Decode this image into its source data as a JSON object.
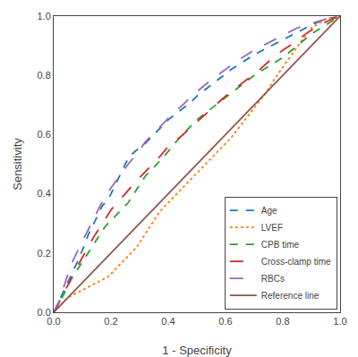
{
  "chart_data": {
    "type": "line",
    "x_label": "1 - Specificity",
    "y_label": "Sensitivity",
    "xlim": [
      0.0,
      1.0
    ],
    "ylim": [
      0.0,
      1.0
    ],
    "xticks": [
      {
        "value": 0.0,
        "label": "0.0"
      },
      0.2,
      0.4,
      0.6,
      0.8,
      {
        "value": 1.0,
        "label": "1.0"
      }
    ],
    "yticks": [
      {
        "value": 0.0,
        "label": "0.0"
      },
      0.2,
      0.4,
      0.6,
      0.8,
      {
        "value": 1.0,
        "label": "1.0"
      }
    ],
    "grid": false,
    "legend": "lower right",
    "series": [
      {
        "name": "Age",
        "line_style": "dash",
        "x": [
          0.0,
          0.01,
          0.02,
          0.03,
          0.04,
          0.05,
          0.06,
          0.07,
          0.08,
          0.09,
          0.1,
          0.11,
          0.12,
          0.13,
          0.14,
          0.15,
          0.16,
          0.17,
          0.18,
          0.19,
          0.2,
          0.21,
          0.22,
          0.23,
          0.24,
          0.25,
          0.26,
          0.28,
          0.3,
          0.32,
          0.34,
          0.36,
          0.38,
          0.4,
          0.42,
          0.44,
          0.46,
          0.48,
          0.5,
          0.54,
          0.58,
          0.62,
          0.66,
          0.7,
          0.74,
          0.78,
          0.82,
          0.86,
          0.9,
          0.95,
          1.0
        ],
        "values": [
          0.0,
          0.02,
          0.04,
          0.06,
          0.08,
          0.1,
          0.12,
          0.14,
          0.165,
          0.185,
          0.21,
          0.23,
          0.26,
          0.28,
          0.3,
          0.32,
          0.34,
          0.36,
          0.37,
          0.38,
          0.4,
          0.42,
          0.44,
          0.46,
          0.48,
          0.5,
          0.52,
          0.54,
          0.555,
          0.57,
          0.59,
          0.61,
          0.63,
          0.65,
          0.665,
          0.68,
          0.695,
          0.71,
          0.73,
          0.76,
          0.79,
          0.82,
          0.845,
          0.87,
          0.89,
          0.91,
          0.93,
          0.95,
          0.97,
          0.99,
          1.0
        ]
      },
      {
        "name": "LVEF",
        "line_style": "dot",
        "x": [
          0.0,
          0.01,
          0.02,
          0.03,
          0.05,
          0.07,
          0.09,
          0.11,
          0.13,
          0.15,
          0.17,
          0.19,
          0.21,
          0.23,
          0.25,
          0.27,
          0.29,
          0.31,
          0.33,
          0.35,
          0.37,
          0.4,
          0.43,
          0.46,
          0.5,
          0.54,
          0.58,
          0.62,
          0.66,
          0.7,
          0.74,
          0.78,
          0.82,
          0.86,
          0.9,
          0.95,
          1.0
        ],
        "values": [
          0.0,
          0.01,
          0.02,
          0.03,
          0.05,
          0.06,
          0.07,
          0.08,
          0.09,
          0.1,
          0.11,
          0.12,
          0.14,
          0.16,
          0.18,
          0.2,
          0.22,
          0.25,
          0.28,
          0.31,
          0.34,
          0.37,
          0.4,
          0.43,
          0.47,
          0.51,
          0.55,
          0.59,
          0.64,
          0.69,
          0.74,
          0.8,
          0.855,
          0.91,
          0.96,
          0.99,
          1.0
        ]
      },
      {
        "name": "CPB time",
        "line_style": "dash",
        "x": [
          0.0,
          0.01,
          0.02,
          0.03,
          0.04,
          0.05,
          0.06,
          0.08,
          0.1,
          0.12,
          0.14,
          0.16,
          0.18,
          0.2,
          0.22,
          0.24,
          0.26,
          0.28,
          0.3,
          0.32,
          0.35,
          0.38,
          0.41,
          0.44,
          0.47,
          0.5,
          0.54,
          0.58,
          0.62,
          0.66,
          0.7,
          0.75,
          0.8,
          0.85,
          0.9,
          0.95,
          1.0
        ],
        "values": [
          0.0,
          0.015,
          0.03,
          0.05,
          0.07,
          0.09,
          0.11,
          0.14,
          0.17,
          0.2,
          0.23,
          0.26,
          0.29,
          0.31,
          0.33,
          0.35,
          0.37,
          0.4,
          0.43,
          0.46,
          0.49,
          0.52,
          0.555,
          0.59,
          0.62,
          0.65,
          0.68,
          0.71,
          0.74,
          0.77,
          0.8,
          0.83,
          0.86,
          0.9,
          0.94,
          0.97,
          1.0
        ]
      },
      {
        "name": "Cross-clamp time",
        "line_style": "longdash",
        "x": [
          0.0,
          0.01,
          0.02,
          0.03,
          0.04,
          0.05,
          0.06,
          0.08,
          0.1,
          0.12,
          0.14,
          0.16,
          0.18,
          0.2,
          0.22,
          0.25,
          0.28,
          0.31,
          0.34,
          0.37,
          0.4,
          0.44,
          0.48,
          0.52,
          0.56,
          0.6,
          0.64,
          0.68,
          0.72,
          0.76,
          0.8,
          0.84,
          0.88,
          0.92,
          0.96,
          1.0
        ],
        "values": [
          0.0,
          0.015,
          0.035,
          0.055,
          0.075,
          0.095,
          0.115,
          0.15,
          0.185,
          0.22,
          0.255,
          0.285,
          0.315,
          0.345,
          0.37,
          0.4,
          0.435,
          0.465,
          0.495,
          0.525,
          0.56,
          0.59,
          0.625,
          0.66,
          0.695,
          0.73,
          0.76,
          0.79,
          0.82,
          0.855,
          0.885,
          0.91,
          0.94,
          0.965,
          0.985,
          1.0
        ]
      },
      {
        "name": "RBCs",
        "line_style": "longdash",
        "x": [
          0.0,
          0.005,
          0.01,
          0.02,
          0.03,
          0.04,
          0.05,
          0.06,
          0.08,
          0.1,
          0.12,
          0.14,
          0.16,
          0.18,
          0.2,
          0.23,
          0.26,
          0.29,
          0.32,
          0.36,
          0.4,
          0.45,
          0.5,
          0.55,
          0.6,
          0.65,
          0.7,
          0.75,
          0.8,
          0.85,
          0.9,
          0.95,
          1.0
        ],
        "values": [
          0.0,
          0.01,
          0.02,
          0.04,
          0.07,
          0.1,
          0.13,
          0.16,
          0.2,
          0.24,
          0.28,
          0.32,
          0.355,
          0.39,
          0.42,
          0.46,
          0.5,
          0.535,
          0.575,
          0.615,
          0.655,
          0.7,
          0.745,
          0.785,
          0.82,
          0.855,
          0.885,
          0.91,
          0.935,
          0.96,
          0.975,
          0.99,
          1.0
        ]
      },
      {
        "name": "Reference line",
        "line_style": "solid",
        "x": [
          0,
          1
        ],
        "values": [
          0,
          1
        ]
      }
    ]
  }
}
